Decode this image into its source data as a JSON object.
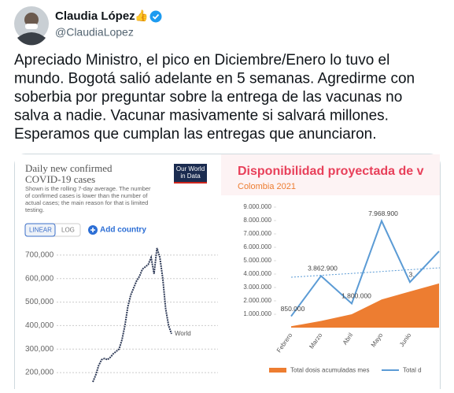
{
  "header": {
    "name": "Claudia López",
    "emoji": "👍",
    "handle": "@ClaudiaLopez"
  },
  "tweet": {
    "lines": [
      "Apreciado Ministro, el pico en Diciembre/Enero lo tuvo el",
      "mundo. Bogotá salió adelante en 5 semanas. Agredirme con",
      "soberbia por preguntar sobre la entrega de las vacunas no",
      "salva a nadie. Vacunar masivamente si salvará millones.",
      "Esperamos que cumplan las entregas que anunciaron."
    ]
  },
  "media": {
    "left": {
      "type": "line",
      "title_lines": [
        "Daily new confirmed",
        "COVID-19 cases"
      ],
      "logo_lines": [
        "Our World",
        "in Data"
      ],
      "note_lines": [
        "Shown is the rolling 7-day average. The number",
        "of confirmed cases is lower than the number of",
        "actual cases; the main reason for that is limited",
        "testing."
      ],
      "buttons": [
        "LINEAR",
        "LOG"
      ],
      "add_country": "Add country",
      "ylim": [
        150000,
        750000
      ],
      "yticks": [
        {
          "value": 200000,
          "label": "200,000"
        },
        {
          "value": 300000,
          "label": "300,000"
        },
        {
          "value": 400000,
          "label": "400,000"
        },
        {
          "value": 500000,
          "label": "500,000"
        },
        {
          "value": 600000,
          "label": "600,000"
        },
        {
          "value": 700000,
          "label": "700,000"
        }
      ],
      "grid": true,
      "series": [
        {
          "name": "World",
          "color": "#2e3a57",
          "values": [
            160000,
            190000,
            230000,
            255000,
            260000,
            255000,
            265000,
            280000,
            290000,
            300000,
            340000,
            400000,
            480000,
            530000,
            560000,
            590000,
            610000,
            640000,
            650000,
            660000,
            690000,
            620000,
            730000,
            690000,
            600000,
            470000,
            400000,
            365000
          ]
        }
      ]
    },
    "right": {
      "type": "line",
      "title": "Disponibilidad proyectada de v",
      "subtitle": "Colombia  2021",
      "categories": [
        "Febrero",
        "Marzo",
        "Abril",
        "Mayo",
        "Junio",
        null
      ],
      "ylim": [
        0,
        9000000
      ],
      "yticks": [
        {
          "value": 1000000,
          "label": "1.000.000"
        },
        {
          "value": 2000000,
          "label": "2.000.000"
        },
        {
          "value": 3000000,
          "label": "3.000.000"
        },
        {
          "value": 4000000,
          "label": "4.000.000"
        },
        {
          "value": 5000000,
          "label": "5.000.000"
        },
        {
          "value": 6000000,
          "label": "6.000.000"
        },
        {
          "value": 7000000,
          "label": "7.000.000"
        },
        {
          "value": 8000000,
          "label": "8.000.000"
        },
        {
          "value": 9000000,
          "label": "9.000.000"
        }
      ],
      "series": [
        {
          "name": "Total dosis acumuladas mes",
          "color": "#ed7d31",
          "kind": "area",
          "values": [
            100000,
            500000,
            1000000,
            2100000,
            2700000,
            3300000
          ]
        },
        {
          "name": "Total d",
          "color": "#5b9bd5",
          "kind": "line",
          "values": [
            850000,
            3862900,
            1800000,
            7968900,
            3400000,
            5700000
          ],
          "value_labels": [
            "850.000",
            "3.862.900",
            "1.800.000",
            "7.968.900",
            "3.",
            null
          ]
        }
      ]
    }
  }
}
